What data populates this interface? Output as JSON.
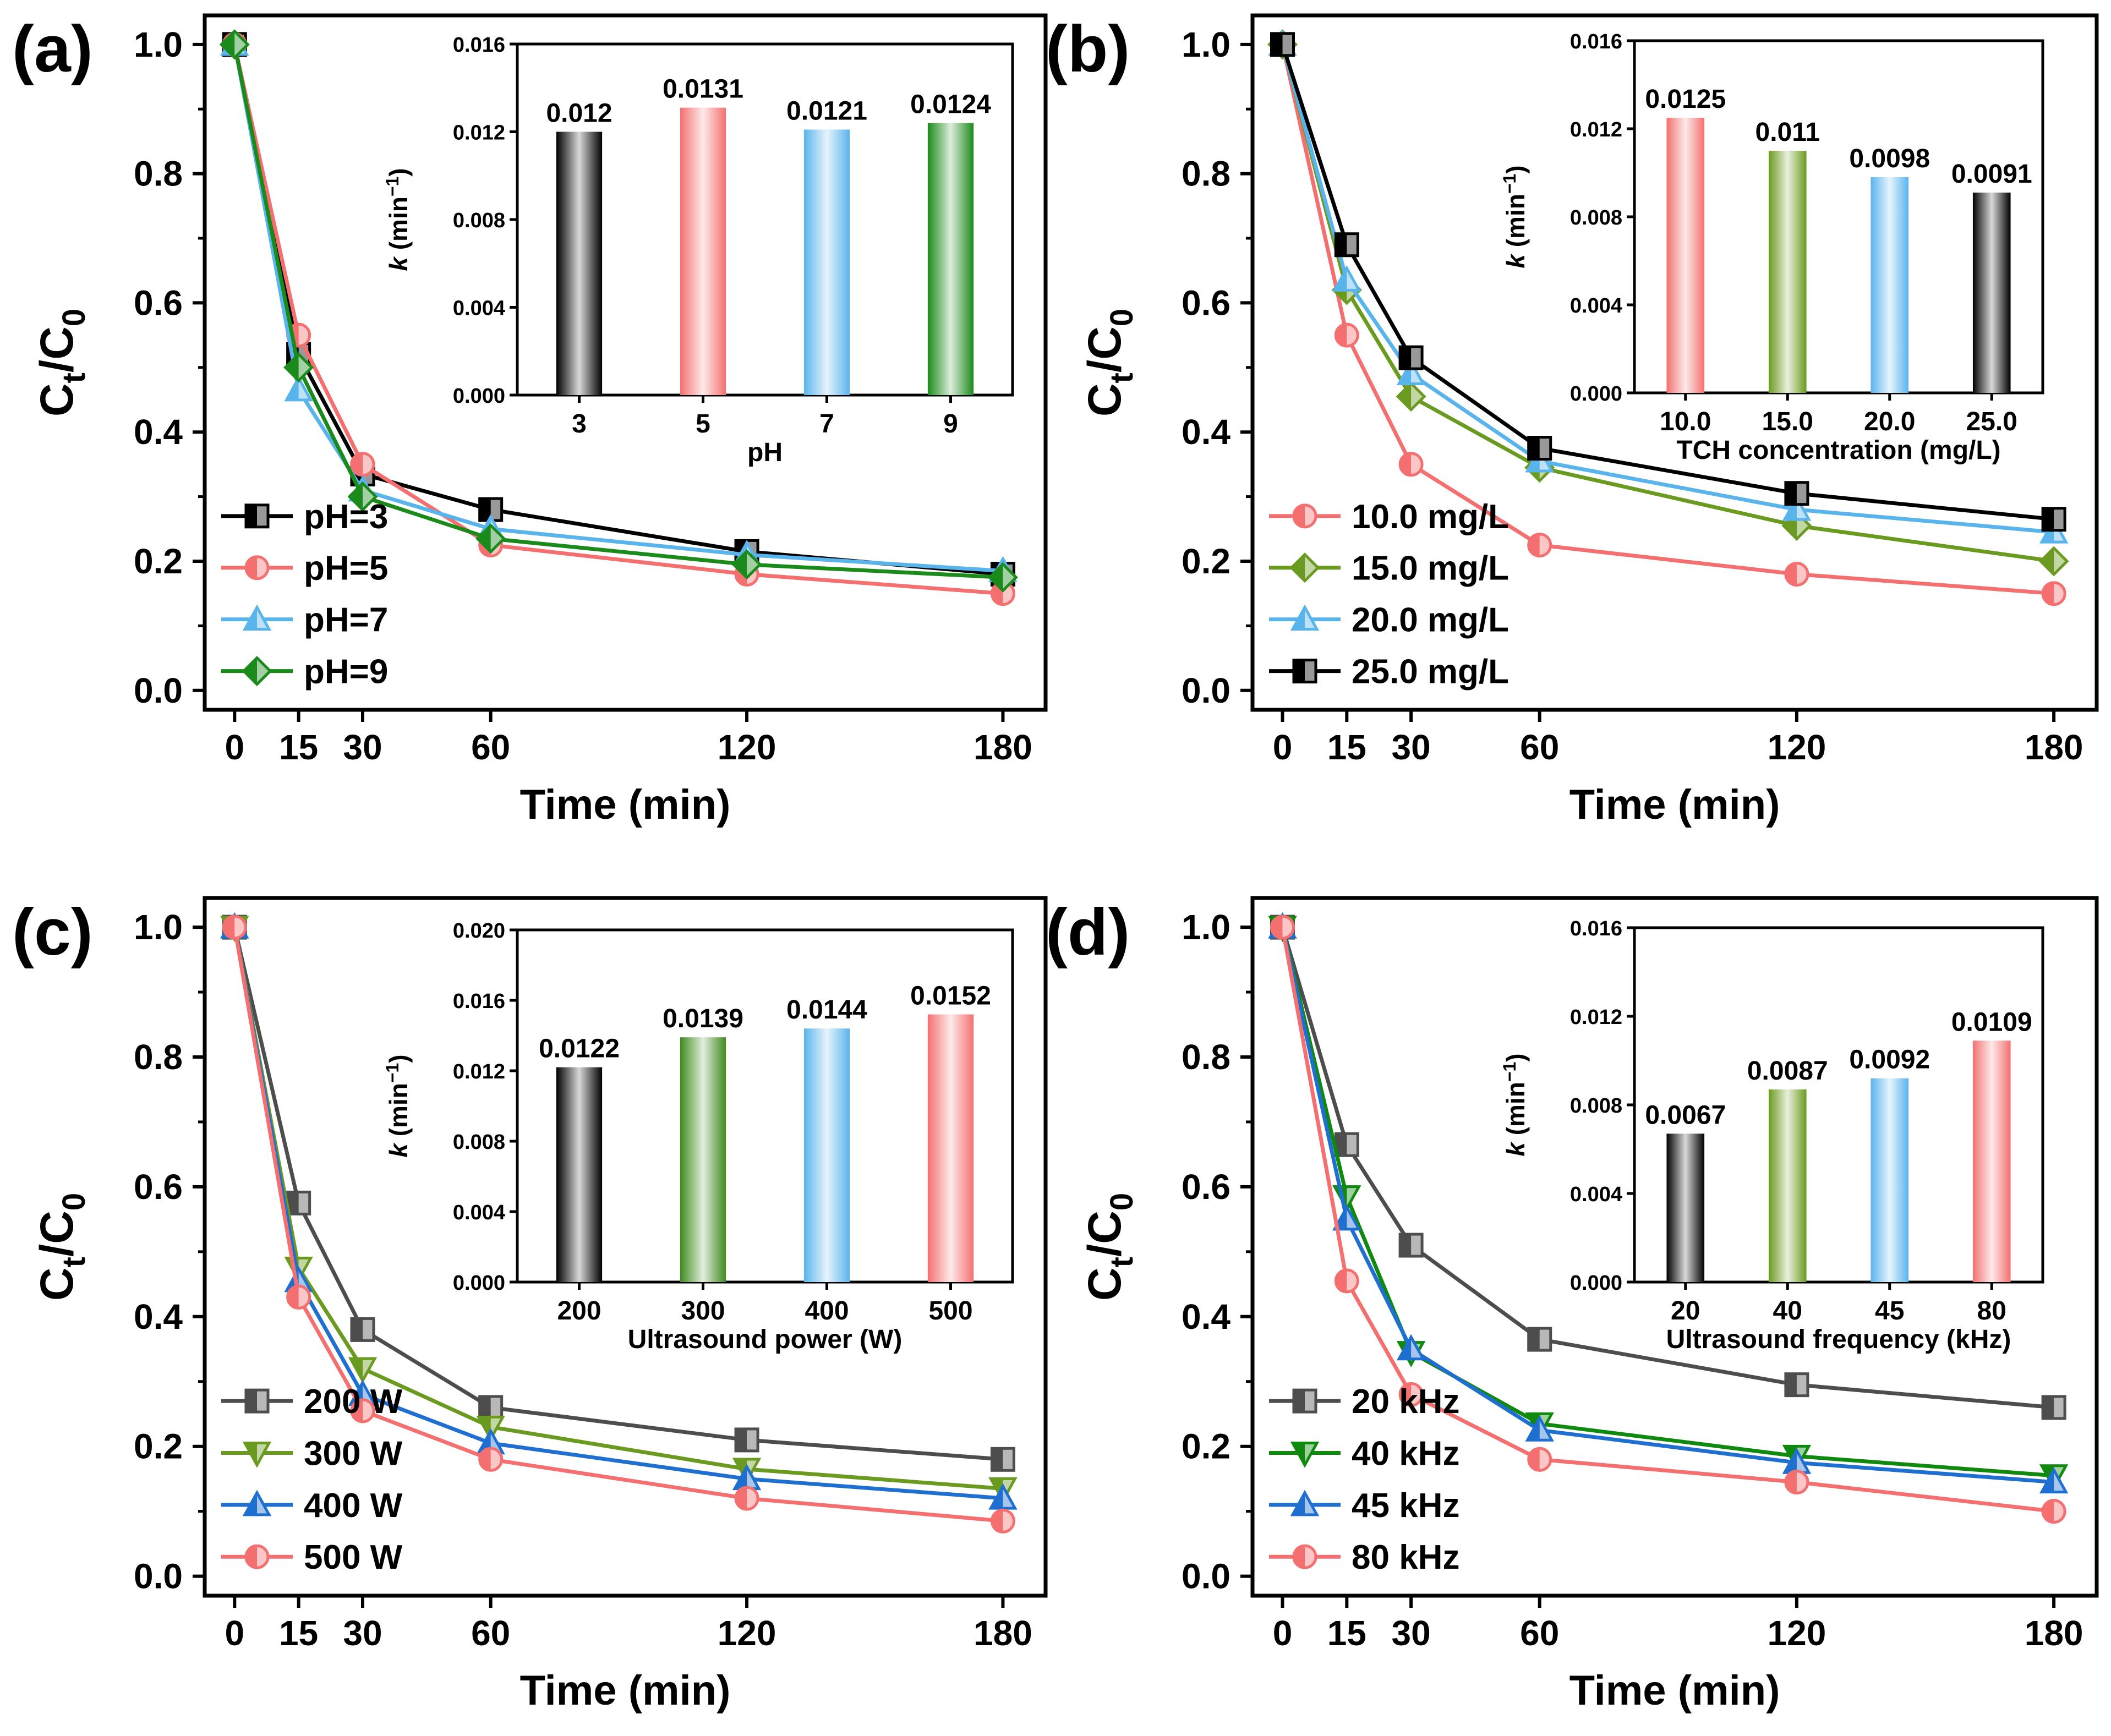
{
  "figure": {
    "y_axis_label_main": "C",
    "y_axis_label_sub": "t",
    "y_axis_label_sep": "/C",
    "y_axis_label_sub2": "0",
    "x_axis_label": "Time (min)",
    "inset_y_label_k": "k",
    "inset_y_label_unit": "(min",
    "inset_y_label_sup": "−1",
    "inset_y_label_close": ")"
  },
  "chart_data": [
    {
      "panel": "(a)",
      "type": "line",
      "title": "",
      "xlabel": "Time (min)",
      "ylabel": "Ct/C0",
      "x": [
        0,
        15,
        30,
        60,
        120,
        180
      ],
      "xticks": [
        "0",
        "15",
        "30",
        "60",
        "120",
        "180"
      ],
      "ylim": [
        0,
        1.0
      ],
      "yticks": [
        "0.0",
        "0.2",
        "0.4",
        "0.6",
        "0.8",
        "1.0"
      ],
      "legend_position": "bottom-left",
      "series": [
        {
          "name": "pH=3",
          "color": "#000000",
          "marker": "square",
          "values": [
            1.0,
            0.52,
            0.335,
            0.28,
            0.215,
            0.18
          ]
        },
        {
          "name": "pH=5",
          "color": "#f47070",
          "marker": "circle",
          "values": [
            1.0,
            0.55,
            0.35,
            0.225,
            0.18,
            0.15
          ]
        },
        {
          "name": "pH=7",
          "color": "#5ab4ec",
          "marker": "triangle-up",
          "values": [
            1.0,
            0.465,
            0.31,
            0.25,
            0.21,
            0.185
          ]
        },
        {
          "name": "pH=9",
          "color": "#1a8a1a",
          "marker": "diamond",
          "values": [
            1.0,
            0.5,
            0.3,
            0.235,
            0.195,
            0.175
          ]
        }
      ],
      "inset": {
        "type": "bar",
        "xlabel": "pH",
        "ylabel": "k (min−1)",
        "categories": [
          "3",
          "5",
          "7",
          "9"
        ],
        "values": [
          0.012,
          0.0131,
          0.0121,
          0.0124
        ],
        "labels": [
          "0.012",
          "0.0131",
          "0.0121",
          "0.0124"
        ],
        "colors": [
          "#000000",
          "#f47070",
          "#5ab4ec",
          "#1a8a1a"
        ],
        "ylim": [
          0,
          0.016
        ],
        "yticks": [
          "0.000",
          "0.004",
          "0.008",
          "0.012",
          "0.016"
        ]
      }
    },
    {
      "panel": "(b)",
      "type": "line",
      "title": "",
      "xlabel": "Time (min)",
      "ylabel": "Ct/C0",
      "x": [
        0,
        15,
        30,
        60,
        120,
        180
      ],
      "xticks": [
        "0",
        "15",
        "30",
        "60",
        "120",
        "180"
      ],
      "ylim": [
        0,
        1.0
      ],
      "yticks": [
        "0.0",
        "0.2",
        "0.4",
        "0.6",
        "0.8",
        "1.0"
      ],
      "legend_position": "bottom-left",
      "series": [
        {
          "name": "10.0 mg/L",
          "color": "#f47070",
          "marker": "circle",
          "values": [
            1.0,
            0.55,
            0.35,
            0.225,
            0.18,
            0.15
          ]
        },
        {
          "name": "15.0 mg/L",
          "color": "#6a9a1f",
          "marker": "diamond",
          "values": [
            1.0,
            0.62,
            0.455,
            0.345,
            0.255,
            0.2
          ]
        },
        {
          "name": "20.0 mg/L",
          "color": "#5ab4ec",
          "marker": "triangle-up",
          "values": [
            1.0,
            0.635,
            0.49,
            0.355,
            0.28,
            0.245
          ]
        },
        {
          "name": "25.0 mg/L",
          "color": "#000000",
          "marker": "square",
          "values": [
            1.0,
            0.69,
            0.515,
            0.375,
            0.305,
            0.265
          ]
        }
      ],
      "inset": {
        "type": "bar",
        "xlabel": "TCH concentration (mg/L)",
        "ylabel": "k (min−1)",
        "categories": [
          "10.0",
          "15.0",
          "20.0",
          "25.0"
        ],
        "values": [
          0.0125,
          0.011,
          0.0098,
          0.0091
        ],
        "labels": [
          "0.0125",
          "0.011",
          "0.0098",
          "0.0091"
        ],
        "colors": [
          "#f47070",
          "#6a9a1f",
          "#5ab4ec",
          "#000000"
        ],
        "ylim": [
          0,
          0.016
        ],
        "yticks": [
          "0.000",
          "0.004",
          "0.008",
          "0.012",
          "0.016"
        ]
      }
    },
    {
      "panel": "(c)",
      "type": "line",
      "title": "",
      "xlabel": "Time (min)",
      "ylabel": "Ct/C0",
      "x": [
        0,
        15,
        30,
        60,
        120,
        180
      ],
      "xticks": [
        "0",
        "15",
        "30",
        "60",
        "120",
        "180"
      ],
      "ylim": [
        0,
        1.0
      ],
      "yticks": [
        "0.0",
        "0.2",
        "0.4",
        "0.6",
        "0.8",
        "1.0"
      ],
      "legend_position": "bottom-left",
      "series": [
        {
          "name": "200 W",
          "color": "#4d4d4d",
          "marker": "square",
          "values": [
            1.0,
            0.575,
            0.38,
            0.26,
            0.21,
            0.18
          ]
        },
        {
          "name": "300 W",
          "color": "#6a9a1f",
          "marker": "triangle-down",
          "values": [
            1.0,
            0.475,
            0.32,
            0.23,
            0.165,
            0.135
          ]
        },
        {
          "name": "400 W",
          "color": "#1f6fd1",
          "marker": "triangle-up",
          "values": [
            1.0,
            0.455,
            0.28,
            0.205,
            0.15,
            0.12
          ]
        },
        {
          "name": "500 W",
          "color": "#f47070",
          "marker": "circle",
          "values": [
            1.0,
            0.43,
            0.255,
            0.18,
            0.12,
            0.085
          ]
        }
      ],
      "inset": {
        "type": "bar",
        "xlabel": "Ultrasound power (W)",
        "ylabel": "k (min−1)",
        "categories": [
          "200",
          "300",
          "400",
          "500"
        ],
        "values": [
          0.0122,
          0.0139,
          0.0144,
          0.0152
        ],
        "labels": [
          "0.0122",
          "0.0139",
          "0.0144",
          "0.0152"
        ],
        "colors": [
          "#000000",
          "#3f8a1f",
          "#5ab4ec",
          "#f47070"
        ],
        "ylim": [
          0,
          0.02
        ],
        "yticks": [
          "0.000",
          "0.004",
          "0.008",
          "0.012",
          "0.016",
          "0.020"
        ]
      }
    },
    {
      "panel": "(d)",
      "type": "line",
      "title": "",
      "xlabel": "Time (min)",
      "ylabel": "Ct/C0",
      "x": [
        0,
        15,
        30,
        60,
        120,
        180
      ],
      "xticks": [
        "0",
        "15",
        "30",
        "60",
        "120",
        "180"
      ],
      "ylim": [
        0,
        1.0
      ],
      "yticks": [
        "0.0",
        "0.2",
        "0.4",
        "0.6",
        "0.8",
        "1.0"
      ],
      "legend_position": "bottom-left",
      "series": [
        {
          "name": "20 kHz",
          "color": "#4d4d4d",
          "marker": "square",
          "values": [
            1.0,
            0.665,
            0.51,
            0.365,
            0.295,
            0.26
          ]
        },
        {
          "name": "40 kHz",
          "color": "#0f8a0f",
          "marker": "triangle-down",
          "values": [
            1.0,
            0.585,
            0.345,
            0.235,
            0.185,
            0.155
          ]
        },
        {
          "name": "45 kHz",
          "color": "#1f6fd1",
          "marker": "triangle-up",
          "values": [
            1.0,
            0.55,
            0.35,
            0.225,
            0.175,
            0.145
          ]
        },
        {
          "name": "80 kHz",
          "color": "#f47070",
          "marker": "circle",
          "values": [
            1.0,
            0.455,
            0.28,
            0.18,
            0.145,
            0.1
          ]
        }
      ],
      "inset": {
        "type": "bar",
        "xlabel": "Ultrasound frequency (kHz)",
        "ylabel": "k (min−1)",
        "categories": [
          "20",
          "40",
          "45",
          "80"
        ],
        "values": [
          0.0067,
          0.0087,
          0.0092,
          0.0109
        ],
        "labels": [
          "0.0067",
          "0.0087",
          "0.0092",
          "0.0109"
        ],
        "colors": [
          "#000000",
          "#6a9a1f",
          "#5ab4ec",
          "#f47070"
        ],
        "ylim": [
          0,
          0.016
        ],
        "yticks": [
          "0.000",
          "0.004",
          "0.008",
          "0.012",
          "0.016"
        ]
      }
    }
  ]
}
